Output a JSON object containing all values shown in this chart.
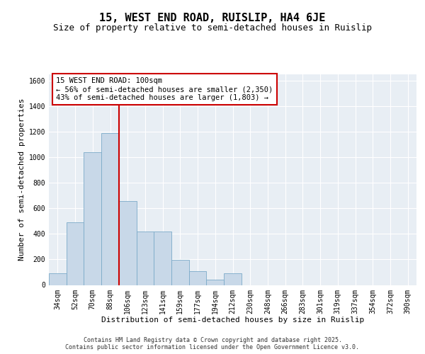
{
  "title": "15, WEST END ROAD, RUISLIP, HA4 6JE",
  "subtitle": "Size of property relative to semi-detached houses in Ruislip",
  "xlabel": "Distribution of semi-detached houses by size in Ruislip",
  "ylabel": "Number of semi-detached properties",
  "categories": [
    "34sqm",
    "52sqm",
    "70sqm",
    "88sqm",
    "106sqm",
    "123sqm",
    "141sqm",
    "159sqm",
    "177sqm",
    "194sqm",
    "212sqm",
    "230sqm",
    "248sqm",
    "266sqm",
    "283sqm",
    "301sqm",
    "319sqm",
    "337sqm",
    "354sqm",
    "372sqm",
    "390sqm"
  ],
  "values": [
    90,
    490,
    1040,
    1190,
    660,
    420,
    420,
    195,
    110,
    40,
    90,
    0,
    0,
    0,
    0,
    0,
    0,
    0,
    0,
    0,
    0
  ],
  "bar_color": "#c8d8e8",
  "bar_edge_color": "#7baac8",
  "vline_color": "#cc0000",
  "annotation_text": "15 WEST END ROAD: 100sqm\n← 56% of semi-detached houses are smaller (2,350)\n43% of semi-detached houses are larger (1,803) →",
  "annotation_box_facecolor": "#ffffff",
  "annotation_box_edgecolor": "#cc0000",
  "ylim": [
    0,
    1650
  ],
  "yticks": [
    0,
    200,
    400,
    600,
    800,
    1000,
    1200,
    1400,
    1600
  ],
  "plot_bg_color": "#e8eef4",
  "fig_bg_color": "#ffffff",
  "footer_text": "Contains HM Land Registry data © Crown copyright and database right 2025.\nContains public sector information licensed under the Open Government Licence v3.0.",
  "title_fontsize": 11,
  "subtitle_fontsize": 9,
  "axis_label_fontsize": 8,
  "tick_fontsize": 7,
  "annotation_fontsize": 7.5,
  "footer_fontsize": 6,
  "vline_position": 3.5
}
